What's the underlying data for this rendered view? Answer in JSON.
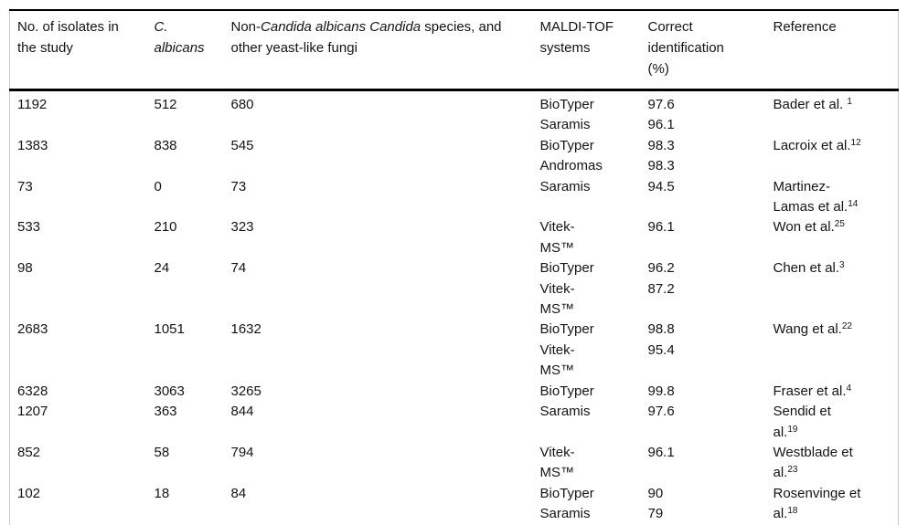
{
  "table": {
    "headers": {
      "isolates_lines": [
        "No. of isolates in",
        "the study"
      ],
      "c_albicans_lines": [
        "C.",
        "albicans"
      ],
      "non_albicans_segments": [
        {
          "text": "Non-"
        },
        {
          "text": "Candida albicans Candida",
          "italic": true
        },
        {
          "text": " species, and"
        },
        {
          "br": true
        },
        {
          "text": "other yeast-like fungi"
        }
      ],
      "systems_lines": [
        "MALDI-TOF",
        "systems"
      ],
      "correct_lines": [
        "Correct",
        "identification",
        "(%)"
      ],
      "reference": "Reference"
    },
    "rows": [
      {
        "isolates": "1192",
        "c_albicans": "512",
        "non_albicans": "680",
        "systems": [
          {
            "lines": [
              "BioTyper"
            ]
          },
          {
            "lines": [
              "Saramis"
            ]
          }
        ],
        "correct_pct": [
          "97.6",
          "96.1"
        ],
        "reference_lines": [
          {
            "text": "Bader et al. ",
            "sup": "1"
          }
        ]
      },
      {
        "isolates": "1383",
        "c_albicans": "838",
        "non_albicans": "545",
        "systems": [
          {
            "lines": [
              "BioTyper"
            ]
          },
          {
            "lines": [
              "Andromas"
            ]
          }
        ],
        "correct_pct": [
          "98.3",
          "98.3"
        ],
        "reference_lines": [
          {
            "text": "Lacroix et al.",
            "sup": "12"
          }
        ]
      },
      {
        "isolates": "73",
        "c_albicans": "0",
        "non_albicans": "73",
        "systems": [
          {
            "lines": [
              "Saramis"
            ]
          }
        ],
        "correct_pct": [
          "94.5"
        ],
        "reference_lines": [
          {
            "text": "Martinez-"
          },
          {
            "text": "Lamas et al.",
            "sup": "14"
          }
        ]
      },
      {
        "isolates": "533",
        "c_albicans": "210",
        "non_albicans": "323",
        "systems": [
          {
            "lines": [
              "Vitek-",
              "MS™"
            ]
          }
        ],
        "correct_pct": [
          "96.1"
        ],
        "reference_lines": [
          {
            "text": "Won et al.",
            "sup": "25"
          }
        ]
      },
      {
        "isolates": "98",
        "c_albicans": "24",
        "non_albicans": "74",
        "systems": [
          {
            "lines": [
              "BioTyper"
            ]
          },
          {
            "lines": [
              "Vitek-",
              "MS™"
            ]
          }
        ],
        "correct_pct": [
          "96.2",
          "87.2"
        ],
        "reference_lines": [
          {
            "text": "Chen et al.",
            "sup": "3"
          }
        ]
      },
      {
        "isolates": "2683",
        "c_albicans": "1051",
        "non_albicans": "1632",
        "systems": [
          {
            "lines": [
              "BioTyper"
            ]
          },
          {
            "lines": [
              "Vitek-",
              "MS™"
            ]
          }
        ],
        "correct_pct": [
          "98.8",
          "95.4"
        ],
        "reference_lines": [
          {
            "text": "Wang et al.",
            "sup": "22"
          }
        ]
      },
      {
        "isolates": "6328",
        "c_albicans": "3063",
        "non_albicans": "3265",
        "systems": [
          {
            "lines": [
              "BioTyper"
            ]
          }
        ],
        "correct_pct": [
          "99.8"
        ],
        "reference_lines": [
          {
            "text": "Fraser et al.",
            "sup": "4"
          }
        ]
      },
      {
        "isolates": "1207",
        "c_albicans": "363",
        "non_albicans": "844",
        "systems": [
          {
            "lines": [
              "Saramis"
            ]
          }
        ],
        "correct_pct": [
          "97.6"
        ],
        "reference_lines": [
          {
            "text": "Sendid et"
          },
          {
            "text": "al.",
            "sup": "19"
          }
        ]
      },
      {
        "isolates": "852",
        "c_albicans": "58",
        "non_albicans": "794",
        "systems": [
          {
            "lines": [
              "Vitek-",
              "MS™"
            ]
          }
        ],
        "correct_pct": [
          "96.1"
        ],
        "reference_lines": [
          {
            "text": "Westblade et"
          },
          {
            "text": "al.",
            "sup": "23"
          }
        ]
      },
      {
        "isolates": "102",
        "c_albicans": "18",
        "non_albicans": "84",
        "systems": [
          {
            "lines": [
              "BioTyper"
            ]
          },
          {
            "lines": [
              "Saramis"
            ]
          }
        ],
        "correct_pct": [
          "90",
          "79"
        ],
        "reference_lines": [
          {
            "text": "Rosenvinge et"
          },
          {
            "text": "al.",
            "sup": "18"
          }
        ]
      }
    ]
  },
  "colors": {
    "rule_strong": "#000000",
    "rule_faint": "#c9c9c9",
    "text": "#141414",
    "background": "#ffffff"
  }
}
